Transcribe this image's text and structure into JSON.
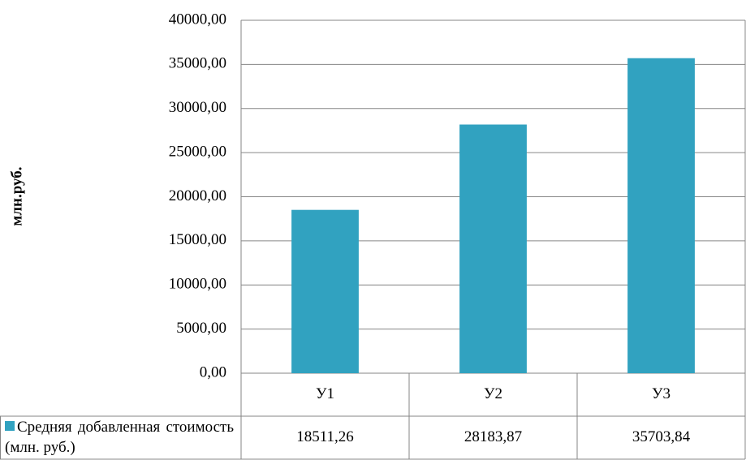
{
  "chart_data": {
    "type": "bar",
    "y_axis_label": "млн.руб.",
    "categories": [
      "У1",
      "У2",
      "У3"
    ],
    "series": [
      {
        "name": "Средняя добавленная стоимость (млн. руб.)",
        "color": "#31a2c0",
        "values": [
          18511.26,
          28183.87,
          35703.84
        ],
        "value_labels": [
          "18511,26",
          "28183,87",
          "35703,84"
        ]
      }
    ],
    "ylim": [
      0,
      40000
    ],
    "yticks": [
      {
        "value": 0,
        "label": "0,00"
      },
      {
        "value": 5000,
        "label": "5000,00"
      },
      {
        "value": 10000,
        "label": "10000,00"
      },
      {
        "value": 15000,
        "label": "15000,00"
      },
      {
        "value": 20000,
        "label": "20000,00"
      },
      {
        "value": 25000,
        "label": "25000,00"
      },
      {
        "value": 30000,
        "label": "30000,00"
      },
      {
        "value": 35000,
        "label": "35000,00"
      },
      {
        "value": 40000,
        "label": "40000,00"
      }
    ],
    "grid": true
  }
}
